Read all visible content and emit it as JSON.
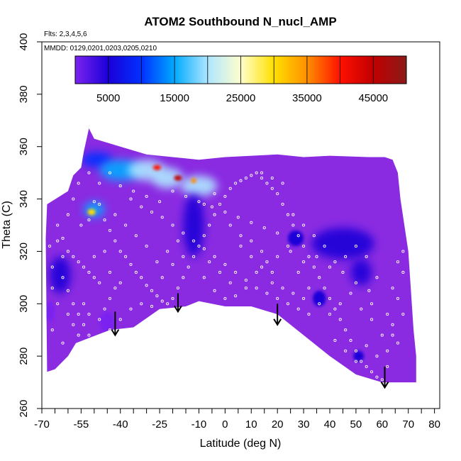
{
  "chart_data": {
    "type": "heatmap",
    "title": "ATOM2 Southbound N_nucl_AMP",
    "annotations": [
      "Flts: 2,3,4,5,6",
      "MMDD: 0129,0201,0203,0205,0210"
    ],
    "xlabel": "Latitude (deg N)",
    "ylabel": "Theta (C)",
    "xlim": [
      -70,
      82
    ],
    "ylim": [
      260,
      400
    ],
    "x_tick_labels": [
      "-70",
      "-55",
      "-40",
      "-25",
      "-10",
      "0",
      "10",
      "20",
      "30",
      "40",
      "50",
      "60",
      "70",
      "80"
    ],
    "x_tick_values": [
      -70,
      -55,
      -40,
      -25,
      -10,
      0,
      10,
      20,
      30,
      40,
      50,
      60,
      70,
      80
    ],
    "x_minor_ticks": [
      -70,
      -65,
      -60,
      -55,
      -50,
      -45,
      -40,
      -35,
      -30,
      -25,
      -20,
      -15,
      -10,
      -5,
      0,
      5,
      10,
      15,
      20,
      25,
      30,
      35,
      40,
      45,
      50,
      55,
      60,
      65,
      70,
      75,
      80
    ],
    "y_ticks": [
      260,
      280,
      300,
      320,
      340,
      360,
      380,
      400
    ],
    "colorbar": {
      "range": [
        0,
        50000
      ],
      "tick_labels": [
        "5000",
        "15000",
        "25000",
        "35000",
        "45000"
      ],
      "tick_values": [
        5000,
        15000,
        25000,
        35000,
        45000
      ],
      "colors": [
        "#7b24f0",
        "#1a00d8",
        "#0030ff",
        "#00aaff",
        "#aee6ff",
        "#ffffcc",
        "#ffe000",
        "#ff9000",
        "#ff1000",
        "#c00000",
        "#8b1a1a"
      ]
    },
    "background_color": "#8a2be2",
    "domain_outline": [
      [
        -68.5,
        325
      ],
      [
        -68,
        338
      ],
      [
        -60,
        343
      ],
      [
        -58,
        349
      ],
      [
        -55,
        352
      ],
      [
        -54,
        358
      ],
      [
        -52,
        367
      ],
      [
        -50,
        363
      ],
      [
        -40,
        360
      ],
      [
        -30,
        357
      ],
      [
        -20,
        356
      ],
      [
        -10,
        355
      ],
      [
        0,
        356
      ],
      [
        20,
        357
      ],
      [
        30,
        356
      ],
      [
        40,
        356.5
      ],
      [
        55,
        356
      ],
      [
        61,
        356
      ],
      [
        64,
        355
      ],
      [
        66,
        350
      ],
      [
        67,
        340
      ],
      [
        70,
        320
      ],
      [
        71,
        305
      ],
      [
        72,
        290
      ],
      [
        73,
        280
      ],
      [
        73,
        270
      ],
      [
        60,
        270
      ],
      [
        50,
        273
      ],
      [
        40,
        280
      ],
      [
        30,
        288
      ],
      [
        20,
        296
      ],
      [
        10,
        299
      ],
      [
        0,
        299
      ],
      [
        -10,
        301
      ],
      [
        -15,
        299
      ],
      [
        -25,
        298
      ],
      [
        -35,
        291
      ],
      [
        -44,
        290
      ],
      [
        -57,
        285
      ],
      [
        -60,
        280
      ],
      [
        -65,
        275
      ],
      [
        -68,
        274
      ]
    ],
    "enhancements": [
      {
        "x": -49,
        "y": 355,
        "rx": 6,
        "ry": 3,
        "value": 12000
      },
      {
        "x": -40,
        "y": 351,
        "rx": 8,
        "ry": 4,
        "value": 16000
      },
      {
        "x": -30,
        "y": 351,
        "rx": 7,
        "ry": 4,
        "value": 20000
      },
      {
        "x": -22,
        "y": 348,
        "rx": 6,
        "ry": 4,
        "value": 22000
      },
      {
        "x": -10,
        "y": 345,
        "rx": 7,
        "ry": 4,
        "value": 18000
      },
      {
        "x": -26,
        "y": 352,
        "rx": 1.5,
        "ry": 1,
        "value": 38000
      },
      {
        "x": -18,
        "y": 348,
        "rx": 1.5,
        "ry": 1,
        "value": 46000
      },
      {
        "x": -12,
        "y": 347,
        "rx": 1,
        "ry": 1,
        "value": 33000
      },
      {
        "x": -50,
        "y": 336,
        "rx": 4,
        "ry": 3,
        "value": 15000
      },
      {
        "x": -51,
        "y": 335,
        "rx": 1.5,
        "ry": 1.2,
        "value": 30000
      },
      {
        "x": -12,
        "y": 330,
        "rx": 4,
        "ry": 12,
        "value": 4000
      },
      {
        "x": -63,
        "y": 311,
        "rx": 4,
        "ry": 7,
        "value": 3000
      },
      {
        "x": -67,
        "y": 297,
        "rx": 2,
        "ry": 4,
        "value": 2000
      },
      {
        "x": -45,
        "y": 293,
        "rx": 3,
        "ry": 4,
        "value": 2000
      },
      {
        "x": 27,
        "y": 325,
        "rx": 3,
        "ry": 3,
        "value": 3000
      },
      {
        "x": 45,
        "y": 323,
        "rx": 12,
        "ry": 6,
        "value": 2500
      },
      {
        "x": 52,
        "y": 312,
        "rx": 4,
        "ry": 5,
        "value": 2500
      },
      {
        "x": 36,
        "y": 302,
        "rx": 2.5,
        "ry": 3,
        "value": 3000
      },
      {
        "x": 51,
        "y": 280,
        "rx": 2,
        "ry": 2,
        "value": 4000
      }
    ],
    "sample_points": [
      [
        -67,
        322
      ],
      [
        -64,
        324
      ],
      [
        -62,
        325
      ],
      [
        -60,
        320
      ],
      [
        -58,
        318
      ],
      [
        -56,
        316
      ],
      [
        -54,
        314
      ],
      [
        -52,
        312
      ],
      [
        -50,
        310
      ],
      [
        -48,
        308
      ],
      [
        -60,
        305
      ],
      [
        -58,
        300
      ],
      [
        -56,
        296
      ],
      [
        -54,
        292
      ],
      [
        -52,
        288
      ],
      [
        -50,
        286
      ],
      [
        -48,
        294
      ],
      [
        -46,
        298
      ],
      [
        -44,
        302
      ],
      [
        -42,
        306
      ],
      [
        -55,
        330
      ],
      [
        -52,
        332
      ],
      [
        -50,
        339
      ],
      [
        -48,
        338
      ],
      [
        -46,
        332
      ],
      [
        -44,
        328
      ],
      [
        -42,
        324
      ],
      [
        -40,
        320
      ],
      [
        -38,
        318
      ],
      [
        -36,
        315
      ],
      [
        -34,
        312
      ],
      [
        -32,
        310
      ],
      [
        -30,
        307
      ],
      [
        -28,
        305
      ],
      [
        -26,
        303
      ],
      [
        -24,
        301
      ],
      [
        -22,
        300
      ],
      [
        -20,
        302
      ],
      [
        -18,
        306
      ],
      [
        -16,
        310
      ],
      [
        -14,
        314
      ],
      [
        -12,
        318
      ],
      [
        -10,
        322
      ],
      [
        -8,
        326
      ],
      [
        -6,
        330
      ],
      [
        -4,
        334
      ],
      [
        -2,
        338
      ],
      [
        0,
        341
      ],
      [
        2,
        344
      ],
      [
        4,
        346
      ],
      [
        6,
        347
      ],
      [
        8,
        348
      ],
      [
        10,
        349
      ],
      [
        12,
        350
      ],
      [
        14,
        348
      ],
      [
        16,
        346
      ],
      [
        18,
        344
      ],
      [
        20,
        342
      ],
      [
        22,
        338
      ],
      [
        24,
        334
      ],
      [
        26,
        330
      ],
      [
        28,
        326
      ],
      [
        30,
        322
      ],
      [
        32,
        318
      ],
      [
        34,
        314
      ],
      [
        36,
        310
      ],
      [
        38,
        306
      ],
      [
        40,
        302
      ],
      [
        42,
        298
      ],
      [
        44,
        294
      ],
      [
        46,
        290
      ],
      [
        48,
        286
      ],
      [
        50,
        282
      ],
      [
        52,
        278
      ],
      [
        54,
        276
      ],
      [
        56,
        274
      ],
      [
        58,
        272
      ],
      [
        60,
        271
      ],
      [
        62,
        282
      ],
      [
        64,
        292
      ],
      [
        66,
        302
      ],
      [
        68,
        312
      ],
      [
        -36,
        340
      ],
      [
        -32,
        337
      ],
      [
        -28,
        335
      ],
      [
        -24,
        333
      ],
      [
        -20,
        330
      ],
      [
        -16,
        327
      ],
      [
        -12,
        324
      ],
      [
        -8,
        321
      ],
      [
        -4,
        318
      ],
      [
        0,
        315
      ],
      [
        4,
        312
      ],
      [
        8,
        309
      ],
      [
        12,
        306
      ],
      [
        16,
        304
      ],
      [
        20,
        302
      ],
      [
        24,
        300
      ],
      [
        28,
        298
      ],
      [
        32,
        296
      ],
      [
        -40,
        345
      ],
      [
        -35,
        343
      ],
      [
        -30,
        341
      ],
      [
        -25,
        339
      ],
      [
        -20,
        343
      ],
      [
        -15,
        341
      ],
      [
        -10,
        339
      ],
      [
        -5,
        337
      ],
      [
        0,
        335
      ],
      [
        5,
        333
      ],
      [
        10,
        331
      ],
      [
        15,
        329
      ],
      [
        20,
        327
      ],
      [
        25,
        320
      ],
      [
        30,
        316
      ],
      [
        35,
        318
      ],
      [
        40,
        314
      ],
      [
        45,
        312
      ],
      [
        50,
        308
      ],
      [
        55,
        305
      ],
      [
        -62,
        310
      ],
      [
        -60,
        296
      ],
      [
        -58,
        292
      ],
      [
        -64,
        300
      ],
      [
        -66,
        290
      ],
      [
        -62,
        285
      ],
      [
        -56,
        288
      ],
      [
        -46,
        286
      ],
      [
        -44,
        290
      ],
      [
        -40,
        294
      ],
      [
        -36,
        298
      ],
      [
        -32,
        300
      ],
      [
        -28,
        299
      ],
      [
        -24,
        310
      ],
      [
        -20,
        315
      ],
      [
        -16,
        318
      ],
      [
        -8,
        310
      ],
      [
        -4,
        305
      ],
      [
        0,
        302
      ],
      [
        4,
        303
      ],
      [
        8,
        306
      ],
      [
        12,
        312
      ],
      [
        16,
        316
      ],
      [
        20,
        318
      ],
      [
        24,
        322
      ],
      [
        28,
        312
      ],
      [
        32,
        306
      ],
      [
        36,
        300
      ],
      [
        40,
        296
      ],
      [
        44,
        300
      ],
      [
        48,
        304
      ],
      [
        52,
        298
      ],
      [
        56,
        294
      ],
      [
        60,
        288
      ],
      [
        62,
        296
      ],
      [
        64,
        306
      ],
      [
        66,
        316
      ],
      [
        68,
        320
      ],
      [
        58,
        310
      ],
      [
        54,
        318
      ],
      [
        50,
        322
      ],
      [
        46,
        318
      ],
      [
        42,
        316
      ],
      [
        38,
        322
      ],
      [
        34,
        326
      ],
      [
        30,
        330
      ],
      [
        26,
        334
      ],
      [
        22,
        346
      ],
      [
        18,
        348
      ],
      [
        14,
        350
      ],
      [
        -30,
        322
      ],
      [
        -34,
        326
      ],
      [
        -38,
        330
      ],
      [
        -42,
        334
      ],
      [
        -46,
        320
      ],
      [
        -50,
        318
      ],
      [
        -54,
        300
      ],
      [
        -52,
        296
      ],
      [
        -44,
        312
      ],
      [
        -40,
        308
      ],
      [
        -26,
        316
      ],
      [
        -22,
        320
      ],
      [
        -18,
        324
      ],
      [
        -6,
        316
      ],
      [
        -2,
        312
      ],
      [
        2,
        308
      ],
      [
        6,
        322
      ],
      [
        10,
        324
      ],
      [
        14,
        320
      ],
      [
        18,
        312
      ],
      [
        -48,
        346
      ],
      [
        -44,
        350
      ],
      [
        -52,
        350
      ],
      [
        -56,
        346
      ],
      [
        -58,
        340
      ],
      [
        -60,
        334
      ],
      [
        -64,
        330
      ],
      [
        -66,
        314
      ],
      [
        -66,
        306
      ],
      [
        -62,
        318
      ],
      [
        42,
        286
      ],
      [
        46,
        282
      ],
      [
        50,
        278
      ],
      [
        54,
        284
      ],
      [
        58,
        280
      ],
      [
        62,
        276
      ],
      [
        66,
        285
      ],
      [
        68,
        296
      ],
      [
        64,
        288
      ],
      [
        56,
        300
      ],
      [
        -8,
        338
      ],
      [
        -4,
        342
      ],
      [
        2,
        330
      ],
      [
        6,
        326
      ],
      [
        10,
        318
      ],
      [
        14,
        314
      ],
      [
        18,
        308
      ],
      [
        22,
        306
      ],
      [
        26,
        304
      ],
      [
        30,
        302
      ]
    ],
    "flight_markers": [
      {
        "x": -42,
        "y_top": 297,
        "y_bottom": 288
      },
      {
        "x": -18,
        "y_top": 304,
        "y_bottom": 297
      },
      {
        "x": 20,
        "y_top": 300,
        "y_bottom": 292
      },
      {
        "x": 61,
        "y_top": 276,
        "y_bottom": 268
      }
    ]
  }
}
